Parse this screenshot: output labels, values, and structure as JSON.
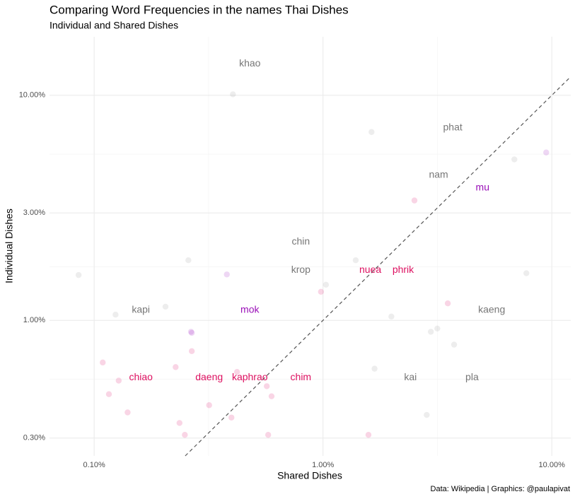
{
  "chart_data": {
    "type": "scatter",
    "title": "Comparing Word Frequencies in the names Thai Dishes",
    "subtitle": "Individual and Shared Dishes",
    "x_label": "Shared Dishes",
    "y_label": "Individual Dishes",
    "caption": "Data: Wikipedia | Graphics: @paulapivat",
    "log_x": true,
    "log_y": true,
    "grid": true,
    "xlim": [
      0.0638,
      12.1
    ],
    "ylim": [
      0.25,
      18.2
    ],
    "xticks": [
      {
        "value": 0.1,
        "label": "0.10%"
      },
      {
        "value": 1,
        "label": "1.00%"
      },
      {
        "value": 10,
        "label": "10.00%"
      }
    ],
    "yticks": [
      {
        "value": 0.3,
        "label": "0.30%"
      },
      {
        "value": 1,
        "label": "1.00%"
      },
      {
        "value": 3,
        "label": "3.00%"
      },
      {
        "value": 10,
        "label": "10.00%"
      }
    ],
    "series": [
      {
        "color": "#999999",
        "x": [
          0.404,
          1.63,
          6.86,
          7.74,
          0.0855,
          0.258,
          1.39,
          1.03,
          0.205,
          0.124,
          1.99,
          3.16,
          2.96,
          3.74,
          1.68,
          2.84
        ],
        "values": [
          10.1,
          6.87,
          5.19,
          1.62,
          1.59,
          1.85,
          1.85,
          1.44,
          1.15,
          1.06,
          1.04,
          0.92,
          0.89,
          0.78,
          0.61,
          0.38
        ]
      },
      {
        "color": "#e0156e",
        "x": [
          2.51,
          3.51,
          0.98,
          0.109,
          0.267,
          0.227,
          0.128,
          0.421,
          0.568,
          0.596,
          0.116,
          0.318,
          0.14,
          0.398,
          0.236,
          0.249,
          0.576,
          1.58
        ],
        "values": [
          3.41,
          1.19,
          1.34,
          0.65,
          0.73,
          0.62,
          0.54,
          0.59,
          0.51,
          0.46,
          0.47,
          0.42,
          0.39,
          0.37,
          0.35,
          0.31,
          0.31,
          0.31
        ]
      },
      {
        "color": "#a21fc4",
        "x": [
          9.45,
          0.38,
          0.265,
          0.267
        ],
        "values": [
          5.57,
          1.6,
          0.89,
          0.88
        ]
      }
    ],
    "annotations": [
      {
        "text": "khao",
        "x": 0.479,
        "y": 13.8,
        "color": "#777777"
      },
      {
        "text": "phat",
        "x": 3.69,
        "y": 7.18,
        "color": "#777777"
      },
      {
        "text": "nam",
        "x": 3.2,
        "y": 4.42,
        "color": "#777777"
      },
      {
        "text": "mu",
        "x": 4.98,
        "y": 3.88,
        "color": "#9a0fb8"
      },
      {
        "text": "chin",
        "x": 0.8,
        "y": 2.23,
        "color": "#777777"
      },
      {
        "text": "krop",
        "x": 0.8,
        "y": 1.67,
        "color": "#777777"
      },
      {
        "text": "nuea",
        "x": 1.61,
        "y": 1.67,
        "color": "#dd1060"
      },
      {
        "text": "phrik",
        "x": 2.24,
        "y": 1.67,
        "color": "#dd1060"
      },
      {
        "text": "kapi",
        "x": 0.16,
        "y": 1.11,
        "color": "#777777"
      },
      {
        "text": "mok",
        "x": 0.479,
        "y": 1.11,
        "color": "#9a0fb8"
      },
      {
        "text": "kaeng",
        "x": 5.46,
        "y": 1.11,
        "color": "#777777"
      },
      {
        "text": "chiao",
        "x": 0.16,
        "y": 0.557,
        "color": "#dd1060"
      },
      {
        "text": "daeng",
        "x": 0.318,
        "y": 0.557,
        "color": "#dd1060"
      },
      {
        "text": "kaphrao",
        "x": 0.479,
        "y": 0.557,
        "color": "#dd1060"
      },
      {
        "text": "chim",
        "x": 0.8,
        "y": 0.557,
        "color": "#dd1060"
      },
      {
        "text": "kai",
        "x": 2.41,
        "y": 0.557,
        "color": "#777777"
      },
      {
        "text": "pla",
        "x": 4.48,
        "y": 0.557,
        "color": "#777777"
      }
    ]
  }
}
